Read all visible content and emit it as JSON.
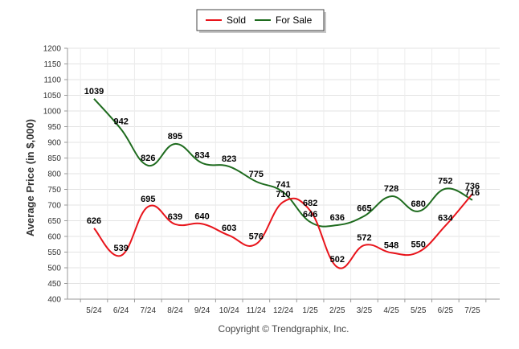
{
  "chart_data": {
    "type": "line",
    "ylabel": "Average Price (in $,000)",
    "ylim": [
      400,
      1200
    ],
    "ytick_step": 50,
    "yticks": [
      "400",
      "450",
      "500",
      "550",
      "600",
      "650",
      "700",
      "750",
      "800",
      "850",
      "900",
      "950",
      "1000",
      "1050",
      "1100",
      "1150",
      "1200"
    ],
    "categories": [
      "5/24",
      "6/24",
      "7/24",
      "8/24",
      "9/24",
      "10/24",
      "11/24",
      "12/24",
      "1/25",
      "2/25",
      "3/25",
      "4/25",
      "5/25",
      "6/25",
      "7/25"
    ],
    "series": [
      {
        "name": "Sold",
        "color": "#e8141b",
        "values": [
          626,
          539,
          695,
          639,
          640,
          603,
          576,
          710,
          682,
          502,
          572,
          548,
          550,
          634,
          736
        ]
      },
      {
        "name": "For Sale",
        "color": "#1e6b1e",
        "values": [
          1039,
          942,
          826,
          895,
          834,
          823,
          775,
          741,
          646,
          636,
          665,
          728,
          680,
          752,
          716
        ]
      }
    ],
    "grid": true,
    "legend_position": "top-center"
  },
  "copyright": "Copyright © Trendgraphix, Inc."
}
